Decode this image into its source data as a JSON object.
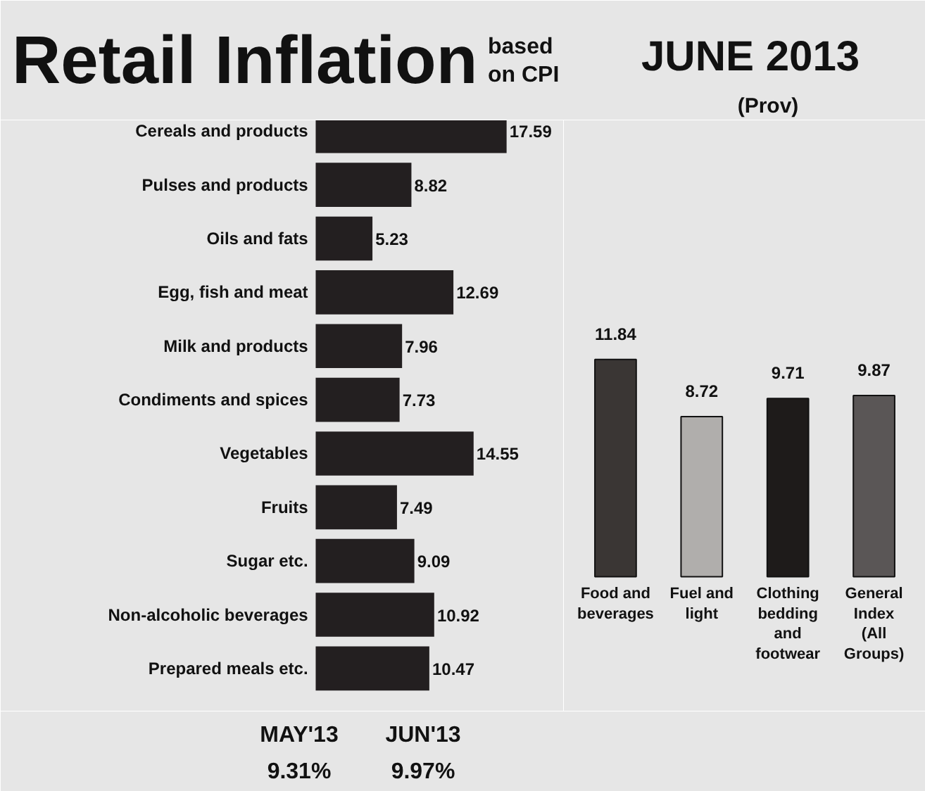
{
  "chart_data": [
    {
      "type": "bar",
      "orientation": "horizontal",
      "title": "Retail Inflation",
      "subtitle": "based on CPI",
      "categories": [
        "Cereals and products",
        "Pulses and products",
        "Oils and fats",
        "Egg, fish and meat",
        "Milk and products",
        "Condiments and spices",
        "Vegetables",
        "Fruits",
        "Sugar etc.",
        "Non-alcoholic beverages",
        "Prepared meals etc."
      ],
      "values": [
        17.59,
        8.82,
        5.23,
        12.69,
        7.96,
        7.73,
        14.55,
        7.49,
        9.09,
        10.92,
        10.47
      ],
      "color": "#231f20",
      "data_labels": true,
      "annotations": [
        "JUNE 2013",
        "(Prov)",
        "MAY'13",
        "9.31%",
        "JUN'13",
        "9.97%"
      ]
    },
    {
      "type": "bar",
      "categories": [
        "Food and beverages",
        "Fuel and light",
        "Clothing bedding and footwear",
        "General Index (All Groups)"
      ],
      "values": [
        11.84,
        8.72,
        9.71,
        9.87
      ],
      "colors": [
        "#3a3634",
        "#b0aeac",
        "#1e1b1a",
        "#5a5656"
      ],
      "data_labels": true
    }
  ]
}
